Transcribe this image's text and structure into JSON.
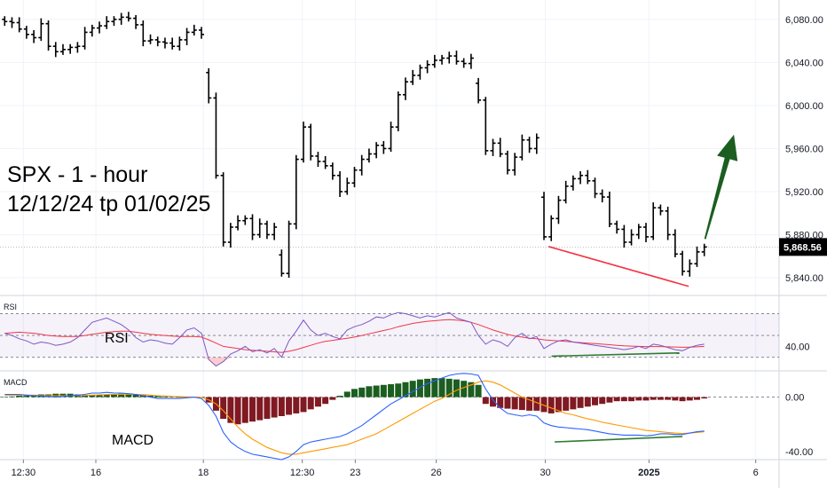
{
  "chart_data": [
    {
      "type": "ohlc",
      "pane": "price",
      "annotation_lines": [
        "SPX - 1 - hour",
        "12/12/24 tp 01/02/25"
      ],
      "ylim": [
        5826,
        6098
      ],
      "yticks": [
        "6,080.00",
        "6,040.00",
        "6,000.00",
        "5,960.00",
        "5,920.00",
        "5,880.00",
        "5,840.00"
      ],
      "ytick_values": [
        6080,
        6040,
        6000,
        5960,
        5920,
        5880,
        5840
      ],
      "last_value_label": "5,868.56",
      "last_value": 5868.56,
      "x_range": [
        0,
        100
      ],
      "x_ticks": [
        {
          "x": 3.0,
          "label": "12:30",
          "bold": false
        },
        {
          "x": 12.3,
          "label": "16",
          "bold": false
        },
        {
          "x": 26.1,
          "label": "18",
          "bold": false
        },
        {
          "x": 38.8,
          "label": "12:30",
          "bold": false
        },
        {
          "x": 45.6,
          "label": "23",
          "bold": false
        },
        {
          "x": 56.0,
          "label": "26",
          "bold": false
        },
        {
          "x": 70.0,
          "label": "30",
          "bold": false
        },
        {
          "x": 83.3,
          "label": "2025",
          "bold": true
        },
        {
          "x": 97.0,
          "label": "6",
          "bold": false
        }
      ],
      "bars_close": [
        6078,
        6077,
        6071,
        6066,
        6063,
        6076,
        6055,
        6050,
        6052,
        6054,
        6055,
        6068,
        6072,
        6074,
        6078,
        6080,
        6082,
        6081,
        6075,
        6060,
        6061,
        6059,
        6058,
        6055,
        6061,
        6068,
        6070,
        6066,
        6007,
        5935,
        5873,
        5887,
        5893,
        5895,
        5880,
        5890,
        5880,
        5887,
        5844,
        5890,
        5950,
        5980,
        5953,
        5948,
        5944,
        5935,
        5920,
        5928,
        5940,
        5950,
        5955,
        5963,
        5960,
        5980,
        6010,
        6022,
        6028,
        6035,
        6038,
        6042,
        6044,
        6046,
        6041,
        6039,
        6044,
        6005,
        5958,
        5965,
        5955,
        5940,
        5952,
        5968,
        5960,
        5970,
        5878,
        5895,
        5912,
        5925,
        5932,
        5935,
        5930,
        5918,
        5915,
        5890,
        5885,
        5873,
        5880,
        5887,
        5878,
        5905,
        5902,
        5880,
        5862,
        5846,
        5853,
        5864,
        5868.56
      ],
      "annotations": [
        {
          "type": "support-line",
          "color": "#f23645",
          "from": {
            "x": 70.4,
            "price": 5869
          },
          "to": {
            "x": 88.4,
            "price": 5832
          }
        },
        {
          "type": "arrow-up",
          "color": "#1b5e20",
          "from": {
            "x": 90.5,
            "price": 5876
          },
          "to": {
            "x": 94.2,
            "price": 5973
          }
        }
      ]
    },
    {
      "type": "line",
      "pane": "RSI",
      "pane_label": "RSI",
      "annotation_label": "RSI",
      "ylim": [
        20,
        85
      ],
      "band": [
        30,
        70
      ],
      "midline": 50,
      "yticks": [
        "40.00"
      ],
      "ytick_values": [
        40
      ],
      "rsi": [
        52,
        50,
        47,
        45,
        42,
        44,
        43,
        41,
        42,
        44,
        48,
        55,
        62,
        64,
        66,
        63,
        60,
        55,
        48,
        44,
        46,
        45,
        43,
        42,
        48,
        55,
        57,
        52,
        28,
        22,
        26,
        33,
        36,
        40,
        35,
        37,
        34,
        38,
        30,
        45,
        54,
        64,
        55,
        50,
        52,
        49,
        47,
        55,
        58,
        60,
        63,
        67,
        66,
        69,
        71,
        70,
        68,
        66,
        68,
        67,
        69,
        71,
        66,
        64,
        62,
        50,
        42,
        46,
        44,
        40,
        48,
        52,
        47,
        49,
        38,
        42,
        45,
        46,
        44,
        43,
        42,
        41,
        40,
        39,
        38,
        37,
        38,
        40,
        38,
        42,
        41,
        39,
        37,
        36,
        39,
        41,
        42
      ],
      "signal": [
        52,
        52.5,
        53,
        52.5,
        52,
        51,
        50,
        49.5,
        49,
        49,
        49,
        50,
        51,
        52,
        53,
        53.5,
        54,
        54,
        53,
        52,
        51,
        50.5,
        50,
        49.5,
        49,
        49,
        49,
        48.5,
        46,
        43,
        40,
        39,
        38,
        37,
        36.5,
        36,
        35.5,
        35,
        34.5,
        35.5,
        37,
        39,
        41,
        43,
        44.5,
        45.5,
        46.5,
        47.5,
        48.5,
        50,
        51.5,
        53,
        54.5,
        56,
        58,
        59.5,
        61,
        62,
        63,
        63.5,
        64,
        64.5,
        64,
        63.5,
        62,
        60,
        57.5,
        55,
        53,
        51,
        49.5,
        48.5,
        47.5,
        47,
        46,
        45.5,
        45,
        44.5,
        44,
        43.5,
        43,
        42.5,
        42,
        41.5,
        41,
        40.5,
        40.2,
        40,
        39.8,
        39.8,
        39.8,
        39.6,
        39.4,
        39.2,
        39.3,
        39.6,
        40
      ],
      "divergence_line": {
        "color": "#2e7d32",
        "from": {
          "x": 70.8,
          "value": 31
        },
        "to": {
          "x": 87.2,
          "value": 34
        }
      }
    },
    {
      "type": "histogram+line",
      "pane": "MACD",
      "pane_label": "MACD",
      "annotation_label": "MACD",
      "ylim": [
        -46,
        18
      ],
      "zero_line": 0,
      "yticks": [
        "0.00",
        "-40.00"
      ],
      "ytick_values": [
        0,
        -40
      ],
      "histogram": [
        0,
        0.5,
        1,
        1,
        1.5,
        2,
        2,
        2.5,
        2.5,
        2.5,
        2,
        1.5,
        1.5,
        1.5,
        2,
        2,
        2.5,
        2.5,
        2,
        1.5,
        1,
        1,
        0.5,
        0.5,
        0,
        0,
        0,
        0,
        -4,
        -10,
        -16,
        -19,
        -20,
        -19,
        -18,
        -17,
        -16,
        -15,
        -14,
        -13,
        -12,
        -11,
        -9,
        -7,
        -5,
        -2,
        1,
        4,
        6,
        7,
        8,
        8.5,
        9,
        9.5,
        10,
        11,
        12,
        13,
        13.5,
        14,
        14,
        13.5,
        13,
        12,
        11,
        9,
        -5,
        -7,
        -8,
        -8.5,
        -9,
        -9.5,
        -10,
        -10,
        -11,
        -12,
        -11,
        -10,
        -9,
        -8,
        -7,
        -6,
        -5,
        -4,
        -3,
        -3,
        -3,
        -2.5,
        -2.5,
        -2,
        -2,
        -2,
        -2.5,
        -3,
        -2.5,
        -2,
        -1
      ],
      "macd": [
        2,
        2,
        2,
        1.5,
        1,
        1,
        0.5,
        0,
        0.5,
        1,
        1.5,
        2,
        3,
        3,
        3.5,
        3,
        3,
        2.5,
        2,
        1,
        0,
        -1,
        -1,
        -1,
        -1,
        -0.5,
        0,
        -1,
        -6,
        -14,
        -26,
        -33,
        -37,
        -40,
        -42,
        -43,
        -44,
        -45,
        -46,
        -44,
        -40,
        -35,
        -33,
        -32,
        -31,
        -30,
        -29,
        -27,
        -24,
        -21,
        -17,
        -13,
        -9,
        -5,
        -2,
        1,
        4,
        7,
        10,
        12,
        14,
        16,
        17,
        17.5,
        17,
        16,
        6,
        -2,
        -8,
        -12,
        -13,
        -14,
        -13,
        -14,
        -19,
        -21,
        -22,
        -22.5,
        -23,
        -23.5,
        -24,
        -25,
        -26,
        -27,
        -27.5,
        -28,
        -28,
        -28,
        -28.5,
        -28,
        -27,
        -27,
        -27.5,
        -27.5,
        -26.5,
        -25.5,
        -25
      ],
      "signal": [
        1.5,
        1.5,
        1.5,
        1.5,
        1.5,
        1.2,
        1,
        1,
        1,
        1,
        1.2,
        1.3,
        1.5,
        1.7,
        1.9,
        2,
        2,
        2,
        2,
        1.8,
        1.5,
        1,
        0.8,
        0.5,
        0.3,
        0.2,
        0,
        -0.2,
        -2,
        -5,
        -10,
        -16,
        -22,
        -27,
        -31,
        -34,
        -37,
        -39,
        -41,
        -42,
        -42,
        -41,
        -40,
        -39,
        -38,
        -37,
        -36,
        -35,
        -33,
        -31,
        -29,
        -27,
        -24,
        -21,
        -18,
        -15,
        -12,
        -9,
        -6,
        -3,
        -1,
        2,
        5,
        7,
        9,
        11,
        12,
        11,
        9,
        6,
        3,
        0,
        -2,
        -4,
        -6,
        -8,
        -10,
        -12,
        -13,
        -14.5,
        -16,
        -17,
        -18.5,
        -19.5,
        -20.5,
        -21.5,
        -22.5,
        -23.5,
        -24.5,
        -25,
        -25.5,
        -26,
        -26.5,
        -26.8,
        -26.5,
        -26,
        -25.5
      ],
      "divergence_line": {
        "color": "#2e7d32",
        "from": {
          "x": 71.2,
          "value": -33
        },
        "to": {
          "x": 87.6,
          "value": -29
        }
      }
    }
  ],
  "colors": {
    "bars": "#000000",
    "rsi_line": "#7e57c2",
    "rsi_signal": "#f23645",
    "rsi_band": "#7e57c2",
    "macd_line": "#2962ff",
    "macd_signal": "#ff9800",
    "hist_positive": "#1b5e20",
    "hist_negative": "#801922",
    "grid": "#f0f3fa",
    "axis_text": "#131722",
    "last_label_bg": "#000000",
    "divergence": "#2e7d32",
    "support": "#f23645",
    "arrow": "#1b5e20"
  }
}
